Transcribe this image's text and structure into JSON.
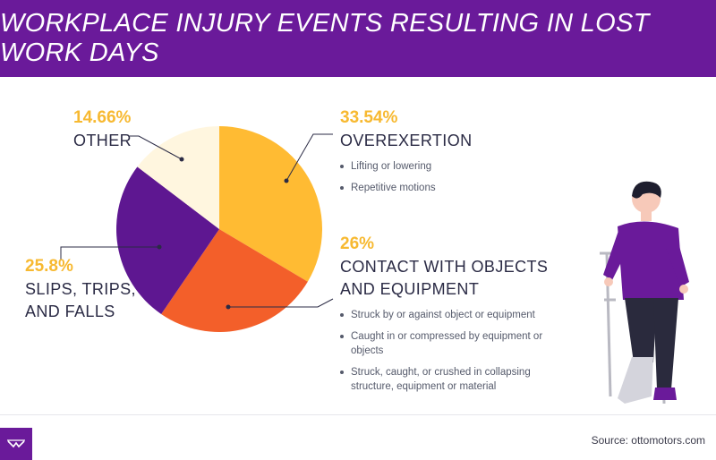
{
  "title": "WORKPLACE INJURY EVENTS RESULTING IN LOST WORK DAYS",
  "chart_data": {
    "type": "pie",
    "title": "WORKPLACE INJURY EVENTS RESULTING IN LOST WORK DAYS",
    "slices": [
      {
        "label": "OVEREXERTION",
        "value": 33.54,
        "display": "33.54%",
        "color": "#ffbb33",
        "bullets": [
          "Lifting or lowering",
          "Repetitive motions"
        ]
      },
      {
        "label": "CONTACT WITH OBJECTS AND EQUIPMENT",
        "value": 26,
        "display": "26%",
        "color": "#f35f2a",
        "bullets": [
          "Struck by or against object or equipment",
          "Caught in or compressed by equipment or objects",
          "Struck, caught, or crushed in collapsing structure, equipment or material"
        ]
      },
      {
        "label": "SLIPS, TRIPS, AND FALLS",
        "value": 25.8,
        "display": "25.8%",
        "color": "#5e1791",
        "bullets": []
      },
      {
        "label": "OTHER",
        "value": 14.66,
        "display": "14.66%",
        "color": "#fff6df",
        "bullets": []
      }
    ]
  },
  "labels": {
    "overexertion": {
      "pct": "33.54%",
      "name": "OVEREXERTION",
      "bullets": [
        "Lifting or lowering",
        "Repetitive motions"
      ]
    },
    "contact": {
      "pct": "26%",
      "name_line1": "CONTACT WITH OBJECTS",
      "name_line2": "AND EQUIPMENT",
      "bullets": [
        "Struck by or against object or equipment",
        "Caught in or compressed by equipment or objects",
        "Struck, caught, or crushed in collapsing structure, equipment or material"
      ]
    },
    "slips": {
      "pct": "25.8%",
      "name_line1": "SLIPS, TRIPS,",
      "name_line2": "AND FALLS"
    },
    "other": {
      "pct": "14.66%",
      "name": "OTHER"
    }
  },
  "source": "Source: ottomotors.com",
  "colors": {
    "header": "#6a1a9a",
    "accent": "#f7b931"
  }
}
